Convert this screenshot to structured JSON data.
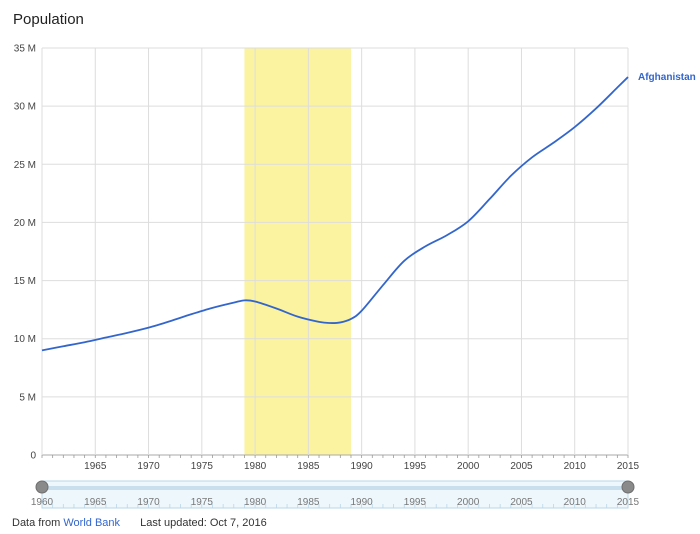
{
  "chart_data": {
    "type": "line",
    "title": "Population",
    "x": [
      1960,
      1962,
      1964,
      1966,
      1968,
      1970,
      1972,
      1974,
      1976,
      1978,
      1979,
      1980,
      1982,
      1984,
      1986,
      1987,
      1988,
      1989,
      1990,
      1992,
      1994,
      1996,
      1998,
      2000,
      2002,
      2004,
      2006,
      2008,
      2010,
      2012,
      2014,
      2015
    ],
    "series": [
      {
        "name": "Afghanistan",
        "color": "#3366cc",
        "values": [
          9.0,
          9.35,
          9.7,
          10.1,
          10.5,
          10.95,
          11.5,
          12.1,
          12.65,
          13.1,
          13.3,
          13.2,
          12.6,
          11.9,
          11.45,
          11.35,
          11.4,
          11.7,
          12.4,
          14.6,
          16.7,
          17.95,
          18.9,
          20.1,
          22.0,
          24.0,
          25.6,
          26.85,
          28.2,
          29.8,
          31.6,
          32.5
        ]
      }
    ],
    "ylim": [
      0,
      35
    ],
    "ytick_labels": [
      "0",
      "5 M",
      "10 M",
      "15 M",
      "20 M",
      "25 M",
      "30 M",
      "35 M"
    ],
    "xlim": [
      1960,
      2015
    ],
    "xtick_labels": [
      "1965",
      "1970",
      "1975",
      "1980",
      "1985",
      "1990",
      "1995",
      "2000",
      "2005",
      "2010",
      "2015"
    ],
    "highlight_range": [
      1979,
      1989
    ],
    "highlight_color": "#fbf3a0",
    "grid": true,
    "legend": "end-of-line label",
    "range_selector": {
      "from": 1960,
      "to": 2015,
      "labels": [
        "1960",
        "1965",
        "1970",
        "1975",
        "1980",
        "1985",
        "1990",
        "1995",
        "2000",
        "2005",
        "2010",
        "2015"
      ]
    }
  },
  "footer": {
    "source_prefix": "Data from",
    "source_link": "World Bank",
    "updated": "Last updated: Oct 7, 2016"
  }
}
